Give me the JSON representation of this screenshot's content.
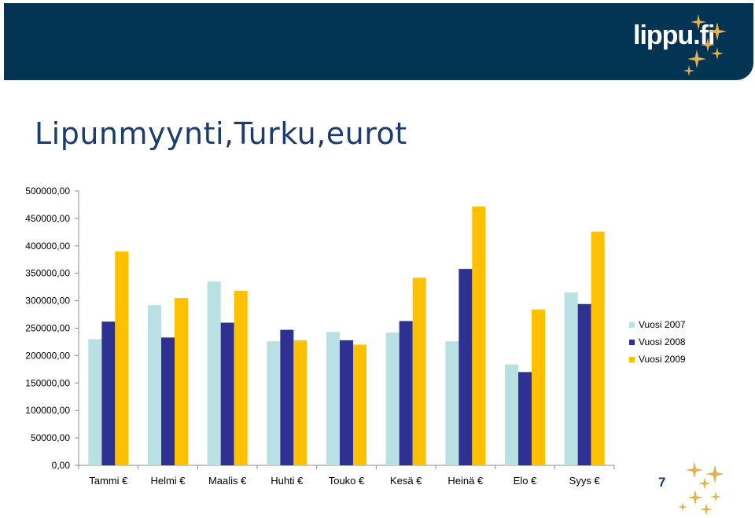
{
  "slide": {
    "title": "Lipunmyynti,Turku,eurot",
    "page_number": "7",
    "logo_text": "lippu.fi"
  },
  "colors": {
    "header": "#043454",
    "title": "#1d3c6e",
    "star": "#e2b24c"
  },
  "chart_data": {
    "type": "bar",
    "categories": [
      "Tammi €",
      "Helmi €",
      "Maalis €",
      "Huhti €",
      "Touko €",
      "Kesä €",
      "Heinä €",
      "Elo €",
      "Syys €"
    ],
    "series": [
      {
        "name": "Vuosi 2007",
        "color": "#b9e0e3",
        "values": [
          230000,
          292000,
          335000,
          226000,
          243000,
          242000,
          226000,
          184000,
          315000
        ]
      },
      {
        "name": "Vuosi 2008",
        "color": "#2e3192",
        "values": [
          262000,
          233000,
          260000,
          247000,
          228000,
          263000,
          358000,
          170000,
          294000
        ]
      },
      {
        "name": "Vuosi 2009",
        "color": "#ffc000",
        "values": [
          390000,
          305000,
          318000,
          228000,
          220000,
          342000,
          472000,
          284000,
          426000
        ]
      }
    ],
    "yticks": [
      "0,00",
      "50000,00",
      "100000,00",
      "150000,00",
      "200000,00",
      "250000,00",
      "300000,00",
      "350000,00",
      "400000,00",
      "450000,00",
      "500000,00"
    ],
    "ylim": [
      0,
      500000
    ],
    "grid": false,
    "legend_position": "right"
  }
}
